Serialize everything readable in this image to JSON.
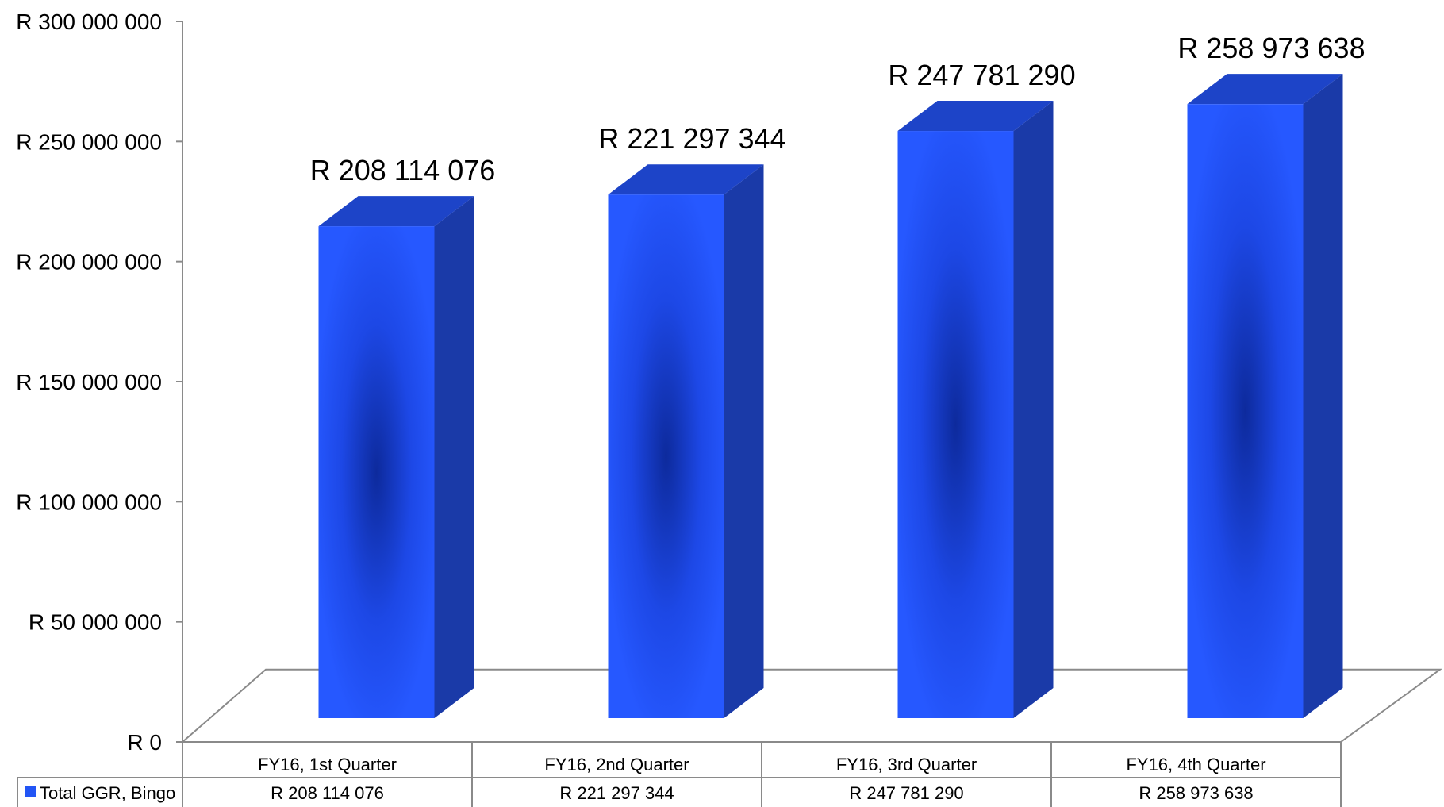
{
  "chart_data": {
    "type": "bar",
    "categories": [
      "FY16, 1st Quarter",
      "FY16, 2nd Quarter",
      "FY16, 3rd Quarter",
      "FY16, 4th Quarter"
    ],
    "series": [
      {
        "name": "Total GGR, Bingo",
        "values": [
          208114076,
          221297344,
          247781290,
          258973638
        ],
        "value_labels": [
          "R 208 114 076",
          "R 221 297 344",
          "R 247 781 290",
          "R 258 973 638"
        ],
        "color": "#2255f5"
      }
    ],
    "ylim": [
      0,
      300000000
    ],
    "yticks": [
      0,
      50000000,
      100000000,
      150000000,
      200000000,
      250000000,
      300000000
    ],
    "ytick_labels": [
      "R 0",
      "R 50 000 000",
      "R 100 000 000",
      "R 150 000 000",
      "R 200 000 000",
      "R 250 000 000",
      "R 300 000 000"
    ],
    "data_table": true,
    "style": "3d-column",
    "title": "",
    "xlabel": "",
    "ylabel": ""
  }
}
